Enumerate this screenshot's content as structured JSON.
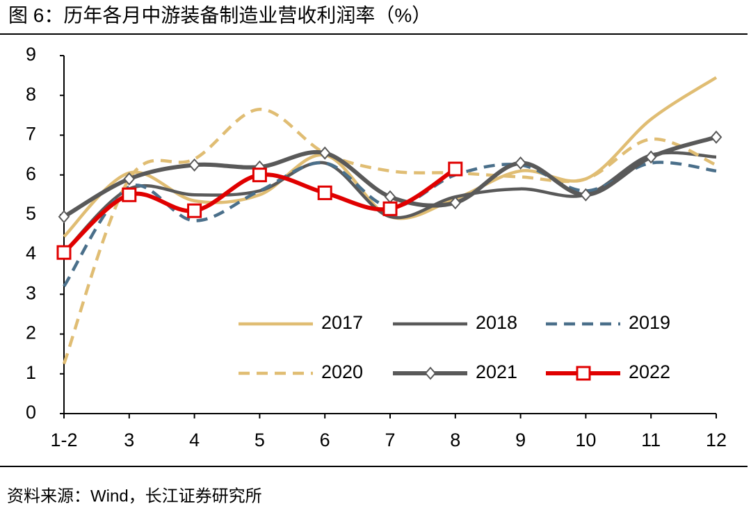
{
  "chart_data": {
    "type": "line",
    "title": "图 6：历年各月中游装备制造业营收利润率（%）",
    "source": "资料来源：Wind，长江证券研究所",
    "categories": [
      "1-2",
      "3",
      "4",
      "5",
      "6",
      "7",
      "8",
      "9",
      "10",
      "11",
      "12"
    ],
    "ylim": [
      0,
      9
    ],
    "yticks": [
      0,
      1,
      2,
      3,
      4,
      5,
      6,
      7,
      8,
      9
    ],
    "grid": false,
    "smooth": true,
    "legend": "lower right",
    "series": [
      {
        "name": "2017",
        "color": "#e0bd73",
        "line_style": "solid",
        "marker": "none",
        "values": [
          4.45,
          6.05,
          5.35,
          5.5,
          6.5,
          4.95,
          5.4,
          6.1,
          5.9,
          7.4,
          8.45
        ]
      },
      {
        "name": "2018",
        "color": "#595959",
        "line_style": "solid",
        "marker": "none",
        "values": [
          4.05,
          5.65,
          5.5,
          5.6,
          6.3,
          4.95,
          5.45,
          5.65,
          5.5,
          6.5,
          6.45
        ]
      },
      {
        "name": "2019",
        "color": "#4a6f8a",
        "line_style": "dashed",
        "marker": "none",
        "values": [
          3.2,
          5.7,
          4.85,
          5.6,
          6.3,
          5.2,
          6.0,
          6.25,
          5.6,
          6.3,
          6.1
        ]
      },
      {
        "name": "2020",
        "color": "#e0bd73",
        "line_style": "dashed",
        "marker": "none",
        "values": [
          1.25,
          5.9,
          6.4,
          7.65,
          6.55,
          6.1,
          6.05,
          5.95,
          5.9,
          6.9,
          6.25
        ]
      },
      {
        "name": "2021",
        "color": "#595959",
        "line_style": "solid",
        "marker": "diamond",
        "values": [
          4.95,
          5.9,
          6.25,
          6.2,
          6.55,
          5.45,
          5.3,
          6.3,
          5.5,
          6.45,
          6.95
        ]
      },
      {
        "name": "2022",
        "color": "#e00000",
        "line_style": "solid",
        "marker": "square",
        "values": [
          4.05,
          5.5,
          5.1,
          6.0,
          5.55,
          5.15,
          6.15,
          null,
          null,
          null,
          null
        ]
      }
    ]
  }
}
